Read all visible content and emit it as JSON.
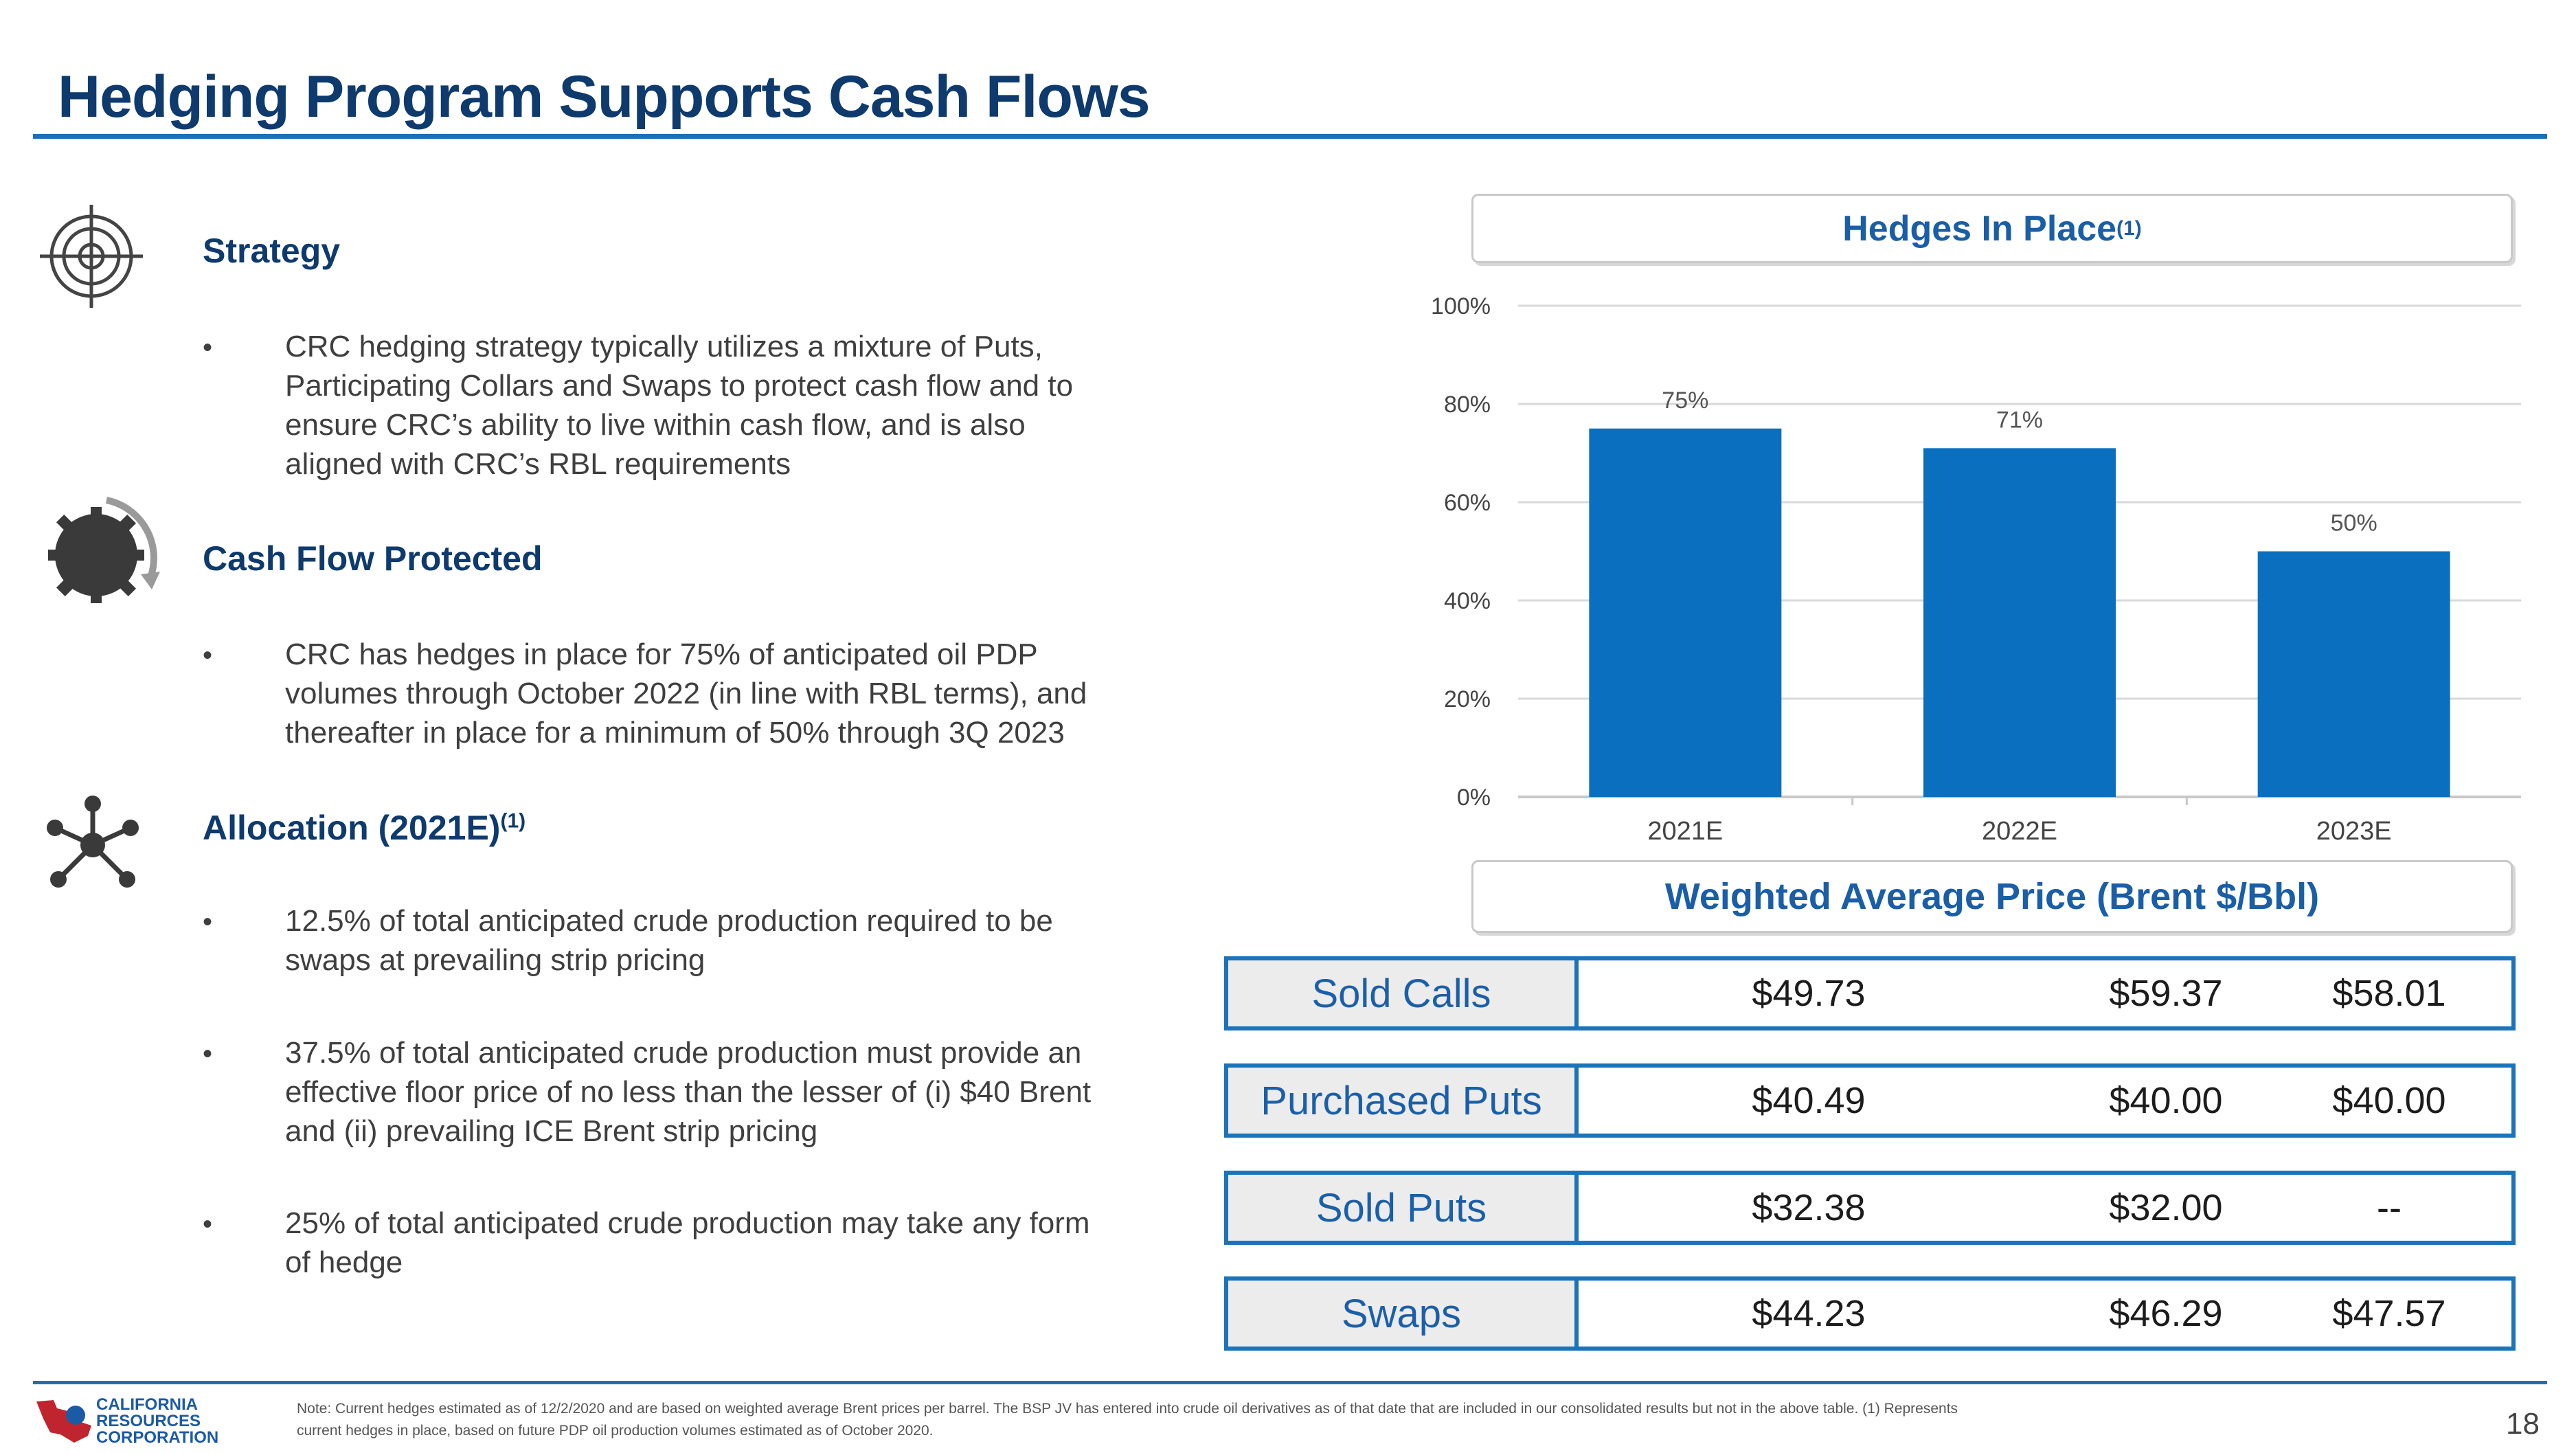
{
  "title": "Hedging Program Supports Cash Flows",
  "sections": [
    {
      "heading": "Strategy",
      "icon": "target-icon",
      "bullets": [
        [
          "CRC hedging strategy typically utilizes a mixture of Puts,",
          "Participating Collars and Swaps to protect cash flow and to",
          "ensure CRC’s ability to live within cash flow, and is also",
          "aligned with CRC’s RBL requirements"
        ]
      ]
    },
    {
      "heading": "Cash Flow Protected",
      "icon": "gear-cycle-icon",
      "bullets": [
        [
          "CRC has hedges in place for 75% of anticipated oil PDP",
          "volumes through October 2022 (in line with RBL terms), and",
          "thereafter in place for a minimum of 50% through 3Q 2023"
        ]
      ]
    },
    {
      "heading": "Allocation (2021E)",
      "heading_sup": "(1)",
      "icon": "network-icon",
      "bullets": [
        [
          "12.5% of total anticipated crude production required to be",
          "swaps at prevailing strip pricing"
        ],
        [
          "37.5% of total anticipated crude production must provide an",
          "effective floor price of no less than the lesser of (i) $40 Brent",
          "and (ii) prevailing ICE Brent strip pricing"
        ],
        [
          "25% of total anticipated crude production may take any form",
          "of hedge"
        ]
      ]
    }
  ],
  "bullet_char": "•",
  "chart_header": {
    "text": "Hedges In Place",
    "sup": "(1)"
  },
  "chart_data": {
    "type": "bar",
    "categories": [
      "2021E",
      "2022E",
      "2023E"
    ],
    "values": [
      75,
      71,
      50
    ],
    "data_labels": [
      "75%",
      "71%",
      "50%"
    ],
    "ylim": [
      0,
      100
    ],
    "yticks": [
      "0%",
      "20%",
      "40%",
      "60%",
      "80%",
      "100%"
    ],
    "grid": true,
    "bar_color": "#0b6fbf"
  },
  "price_header": "Weighted Average Price (Brent $/Bbl)",
  "price_table": [
    {
      "label": "Sold Calls",
      "values": [
        "$49.73",
        "$59.37",
        "$58.01"
      ]
    },
    {
      "label": "Purchased Puts",
      "values": [
        "$40.49",
        "$40.00",
        "$40.00"
      ]
    },
    {
      "label": "Sold Puts",
      "values": [
        "$32.38",
        "$32.00",
        "--"
      ]
    },
    {
      "label": "Swaps",
      "values": [
        "$44.23",
        "$46.29",
        "$47.57"
      ]
    }
  ],
  "logo": {
    "line1": "CALIFORNIA",
    "line2": "RESOURCES",
    "line3": "CORPORATION"
  },
  "footnote": [
    "Note: Current hedges estimated as of 12/2/2020 and are based on weighted average Brent prices per barrel.  The BSP JV has entered into crude oil derivatives as of that date that are included in our consolidated results but not in the above table. (1) Represents",
    "current hedges in place, based on future PDP oil production volumes estimated as of October 2020."
  ],
  "page_number": "18"
}
